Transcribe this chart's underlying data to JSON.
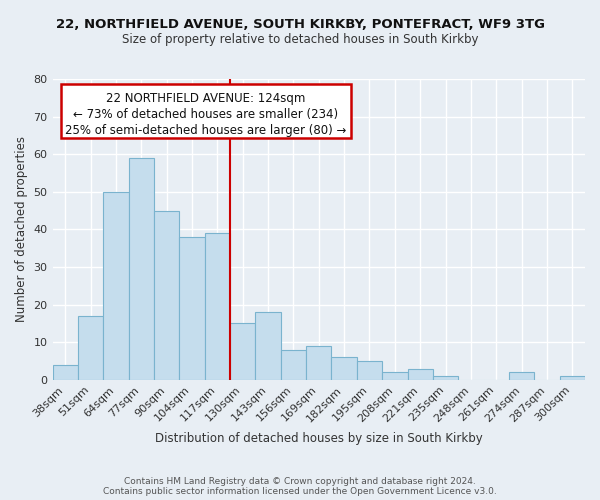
{
  "title_line1": "22, NORTHFIELD AVENUE, SOUTH KIRKBY, PONTEFRACT, WF9 3TG",
  "title_line2": "Size of property relative to detached houses in South Kirkby",
  "xlabel": "Distribution of detached houses by size in South Kirkby",
  "ylabel": "Number of detached properties",
  "categories": [
    "38sqm",
    "51sqm",
    "64sqm",
    "77sqm",
    "90sqm",
    "104sqm",
    "117sqm",
    "130sqm",
    "143sqm",
    "156sqm",
    "169sqm",
    "182sqm",
    "195sqm",
    "208sqm",
    "221sqm",
    "235sqm",
    "248sqm",
    "261sqm",
    "274sqm",
    "287sqm",
    "300sqm"
  ],
  "values": [
    4,
    17,
    50,
    59,
    45,
    38,
    39,
    15,
    18,
    8,
    9,
    6,
    5,
    2,
    3,
    1,
    0,
    0,
    2,
    0,
    1
  ],
  "bar_color": "#c5dded",
  "bar_edge_color": "#7ab3ce",
  "vline_x_index": 7,
  "annotation_title": "22 NORTHFIELD AVENUE: 124sqm",
  "annotation_line2": "← 73% of detached houses are smaller (234)",
  "annotation_line3": "25% of semi-detached houses are larger (80) →",
  "annotation_box_color": "#ffffff",
  "annotation_box_edge": "#cc0000",
  "ylim": [
    0,
    80
  ],
  "yticks": [
    0,
    10,
    20,
    30,
    40,
    50,
    60,
    70,
    80
  ],
  "bg_color": "#e8eef4",
  "grid_color": "#ffffff",
  "footer_line1": "Contains HM Land Registry data © Crown copyright and database right 2024.",
  "footer_line2": "Contains public sector information licensed under the Open Government Licence v3.0.",
  "title_fontsize": 9.5,
  "subtitle_fontsize": 8.5,
  "xlabel_fontsize": 8.5,
  "ylabel_fontsize": 8.5,
  "tick_fontsize": 8,
  "ann_fontsize": 8.5,
  "footer_fontsize": 6.5
}
